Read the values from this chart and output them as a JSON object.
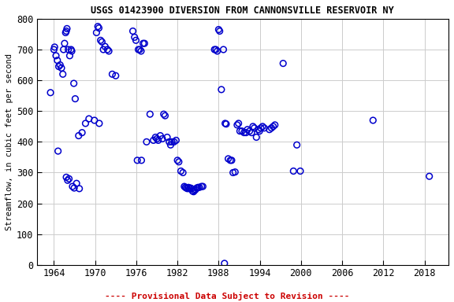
{
  "title": "USGS 01423900 DIVERSION FROM CANNONSVILLE RESERVOIR NY",
  "ylabel": "Streamflow, in cubic feet per second",
  "xlim": [
    1961.5,
    2021.5
  ],
  "ylim": [
    0,
    800
  ],
  "xticks": [
    1964,
    1970,
    1976,
    1982,
    1988,
    1994,
    2000,
    2006,
    2012,
    2018
  ],
  "yticks": [
    0,
    100,
    200,
    300,
    400,
    500,
    600,
    700,
    800
  ],
  "background_color": "#ffffff",
  "grid_color": "#cccccc",
  "marker_color": "#0000cc",
  "marker_size": 5.5,
  "marker_lw": 1.1,
  "footnote": "---- Provisional Data Subject to Revision ----",
  "footnote_color": "#cc0000",
  "data_points": [
    [
      1963.5,
      560
    ],
    [
      1964.0,
      700
    ],
    [
      1964.1,
      708
    ],
    [
      1964.3,
      680
    ],
    [
      1964.5,
      665
    ],
    [
      1964.7,
      645
    ],
    [
      1964.9,
      650
    ],
    [
      1965.1,
      640
    ],
    [
      1965.3,
      620
    ],
    [
      1965.4,
      700
    ],
    [
      1965.55,
      720
    ],
    [
      1965.7,
      755
    ],
    [
      1965.8,
      760
    ],
    [
      1965.9,
      768
    ],
    [
      1966.1,
      700
    ],
    [
      1966.3,
      680
    ],
    [
      1966.5,
      700
    ],
    [
      1966.6,
      695
    ],
    [
      1966.9,
      590
    ],
    [
      1967.1,
      540
    ],
    [
      1967.6,
      420
    ],
    [
      1968.1,
      430
    ],
    [
      1968.6,
      460
    ],
    [
      1969.1,
      475
    ],
    [
      1964.6,
      370
    ],
    [
      1965.8,
      285
    ],
    [
      1966.0,
      275
    ],
    [
      1966.2,
      280
    ],
    [
      1966.7,
      255
    ],
    [
      1966.95,
      250
    ],
    [
      1967.3,
      265
    ],
    [
      1967.7,
      248
    ],
    [
      1970.2,
      755
    ],
    [
      1970.4,
      775
    ],
    [
      1970.55,
      770
    ],
    [
      1970.8,
      730
    ],
    [
      1971.0,
      725
    ],
    [
      1971.2,
      700
    ],
    [
      1971.45,
      710
    ],
    [
      1971.8,
      700
    ],
    [
      1972.0,
      695
    ],
    [
      1972.5,
      620
    ],
    [
      1973.0,
      615
    ],
    [
      1969.9,
      470
    ],
    [
      1970.6,
      460
    ],
    [
      1975.5,
      760
    ],
    [
      1975.75,
      740
    ],
    [
      1975.95,
      730
    ],
    [
      1976.3,
      700
    ],
    [
      1976.5,
      700
    ],
    [
      1976.7,
      695
    ],
    [
      1977.0,
      720
    ],
    [
      1977.2,
      720
    ],
    [
      1976.15,
      340
    ],
    [
      1976.75,
      340
    ],
    [
      1977.5,
      400
    ],
    [
      1978.0,
      490
    ],
    [
      1978.5,
      405
    ],
    [
      1978.8,
      415
    ],
    [
      1979.0,
      410
    ],
    [
      1979.2,
      405
    ],
    [
      1979.5,
      420
    ],
    [
      1979.8,
      410
    ],
    [
      1980.0,
      490
    ],
    [
      1980.2,
      485
    ],
    [
      1980.5,
      415
    ],
    [
      1980.8,
      400
    ],
    [
      1981.0,
      390
    ],
    [
      1981.2,
      400
    ],
    [
      1981.5,
      400
    ],
    [
      1981.8,
      405
    ],
    [
      1982.0,
      340
    ],
    [
      1982.2,
      335
    ],
    [
      1982.5,
      305
    ],
    [
      1982.8,
      300
    ],
    [
      1983.0,
      255
    ],
    [
      1983.15,
      252
    ],
    [
      1983.3,
      250
    ],
    [
      1983.45,
      248
    ],
    [
      1983.6,
      252
    ],
    [
      1983.75,
      248
    ],
    [
      1983.9,
      250
    ],
    [
      1984.05,
      248
    ],
    [
      1984.2,
      240
    ],
    [
      1984.35,
      238
    ],
    [
      1984.5,
      242
    ],
    [
      1984.65,
      245
    ],
    [
      1984.8,
      250
    ],
    [
      1985.0,
      252
    ],
    [
      1985.2,
      252
    ],
    [
      1985.5,
      255
    ],
    [
      1985.7,
      255
    ],
    [
      1987.4,
      700
    ],
    [
      1987.6,
      700
    ],
    [
      1987.8,
      695
    ],
    [
      1988.0,
      765
    ],
    [
      1988.15,
      760
    ],
    [
      1988.4,
      570
    ],
    [
      1988.7,
      700
    ],
    [
      1988.95,
      460
    ],
    [
      1989.1,
      458
    ],
    [
      1989.4,
      345
    ],
    [
      1989.7,
      340
    ],
    [
      1989.9,
      340
    ],
    [
      1990.1,
      300
    ],
    [
      1990.4,
      302
    ],
    [
      1990.7,
      455
    ],
    [
      1990.9,
      460
    ],
    [
      1991.1,
      435
    ],
    [
      1991.4,
      435
    ],
    [
      1991.7,
      430
    ],
    [
      1992.0,
      430
    ],
    [
      1992.2,
      440
    ],
    [
      1992.5,
      435
    ],
    [
      1992.8,
      430
    ],
    [
      1993.0,
      450
    ],
    [
      1993.2,
      445
    ],
    [
      1993.5,
      415
    ],
    [
      1993.8,
      440
    ],
    [
      1988.85,
      5
    ],
    [
      1993.95,
      435
    ],
    [
      1994.15,
      445
    ],
    [
      1994.4,
      450
    ],
    [
      1994.65,
      445
    ],
    [
      1995.4,
      440
    ],
    [
      1995.7,
      445
    ],
    [
      1995.95,
      450
    ],
    [
      1996.2,
      455
    ],
    [
      1997.4,
      655
    ],
    [
      1998.9,
      305
    ],
    [
      1999.9,
      305
    ],
    [
      1999.4,
      390
    ],
    [
      2010.5,
      470
    ],
    [
      2018.7,
      288
    ]
  ]
}
